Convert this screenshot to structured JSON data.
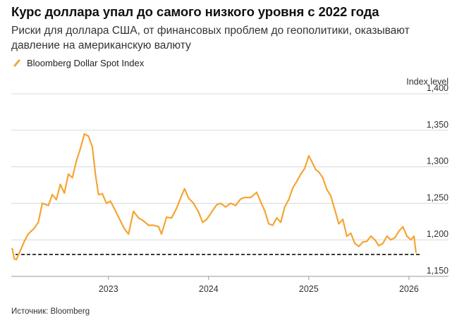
{
  "header": {
    "title": "Курс доллара упал до самого низкого уровня с 2022 года",
    "subtitle": "Риски для доллара США, от финансовых проблем до геополитики, оказывают давление на американскую валюту"
  },
  "legend": {
    "label": "Bloomberg Dollar Spot Index"
  },
  "source": "Источник: Bloomberg",
  "colors": {
    "series": "#f5a533",
    "grid": "#d9d9d9",
    "reference": "#111111",
    "text": "#111111"
  },
  "chart_data": {
    "type": "line",
    "title": "Курс доллара упал до самого низкого уровня с 2022 года",
    "ylabel": "Index level",
    "ylim": [
      1150,
      1400
    ],
    "xlim": [
      2022.03,
      2026.17
    ],
    "y_ticks": [
      1150,
      1200,
      1250,
      1300,
      1350,
      1400
    ],
    "y_tick_labels": [
      "1,150",
      "1,200",
      "1,250",
      "1,300",
      "1,350",
      "1,400"
    ],
    "x_ticks": [
      2023,
      2024,
      2025,
      2026
    ],
    "x_tick_labels": [
      "2023",
      "2024",
      "2025",
      "2026"
    ],
    "reference_line": {
      "value": 1180,
      "style": "dashed"
    },
    "grid": true,
    "series": [
      {
        "name": "Bloomberg Dollar Spot Index",
        "x": [
          2022.04,
          2022.06,
          2022.08,
          2022.12,
          2022.16,
          2022.2,
          2022.26,
          2022.3,
          2022.34,
          2022.4,
          2022.44,
          2022.48,
          2022.52,
          2022.56,
          2022.6,
          2022.64,
          2022.68,
          2022.72,
          2022.76,
          2022.8,
          2022.84,
          2022.87,
          2022.9,
          2022.94,
          2022.98,
          2023.02,
          2023.08,
          2023.12,
          2023.16,
          2023.2,
          2023.25,
          2023.3,
          2023.35,
          2023.4,
          2023.45,
          2023.5,
          2023.53,
          2023.58,
          2023.63,
          2023.68,
          2023.72,
          2023.76,
          2023.8,
          2023.85,
          2023.9,
          2023.94,
          2023.98,
          2024.03,
          2024.08,
          2024.12,
          2024.17,
          2024.22,
          2024.27,
          2024.32,
          2024.36,
          2024.42,
          2024.48,
          2024.52,
          2024.56,
          2024.6,
          2024.64,
          2024.68,
          2024.72,
          2024.76,
          2024.8,
          2024.84,
          2024.88,
          2024.92,
          2024.96,
          2025.0,
          2025.03,
          2025.07,
          2025.1,
          2025.14,
          2025.18,
          2025.22,
          2025.26,
          2025.3,
          2025.34,
          2025.38,
          2025.42,
          2025.46,
          2025.5,
          2025.54,
          2025.58,
          2025.62,
          2025.66,
          2025.7,
          2025.74,
          2025.78,
          2025.82,
          2025.86,
          2025.9,
          2025.94,
          2025.98,
          2026.02,
          2026.05,
          2026.07
        ],
        "values": [
          1188,
          1174,
          1173,
          1185,
          1198,
          1208,
          1216,
          1224,
          1250,
          1247,
          1262,
          1255,
          1276,
          1264,
          1290,
          1285,
          1308,
          1325,
          1345,
          1342,
          1327,
          1290,
          1262,
          1263,
          1250,
          1253,
          1237,
          1226,
          1215,
          1208,
          1239,
          1230,
          1226,
          1220,
          1220,
          1218,
          1208,
          1231,
          1230,
          1243,
          1257,
          1270,
          1257,
          1250,
          1238,
          1224,
          1228,
          1238,
          1248,
          1250,
          1245,
          1250,
          1247,
          1256,
          1258,
          1258,
          1265,
          1252,
          1240,
          1222,
          1220,
          1230,
          1224,
          1245,
          1255,
          1271,
          1280,
          1290,
          1298,
          1315,
          1307,
          1296,
          1293,
          1285,
          1269,
          1260,
          1241,
          1222,
          1228,
          1205,
          1209,
          1195,
          1191,
          1197,
          1198,
          1205,
          1200,
          1192,
          1195,
          1205,
          1200,
          1203,
          1212,
          1218,
          1205,
          1200,
          1205,
          1183
        ]
      }
    ]
  }
}
